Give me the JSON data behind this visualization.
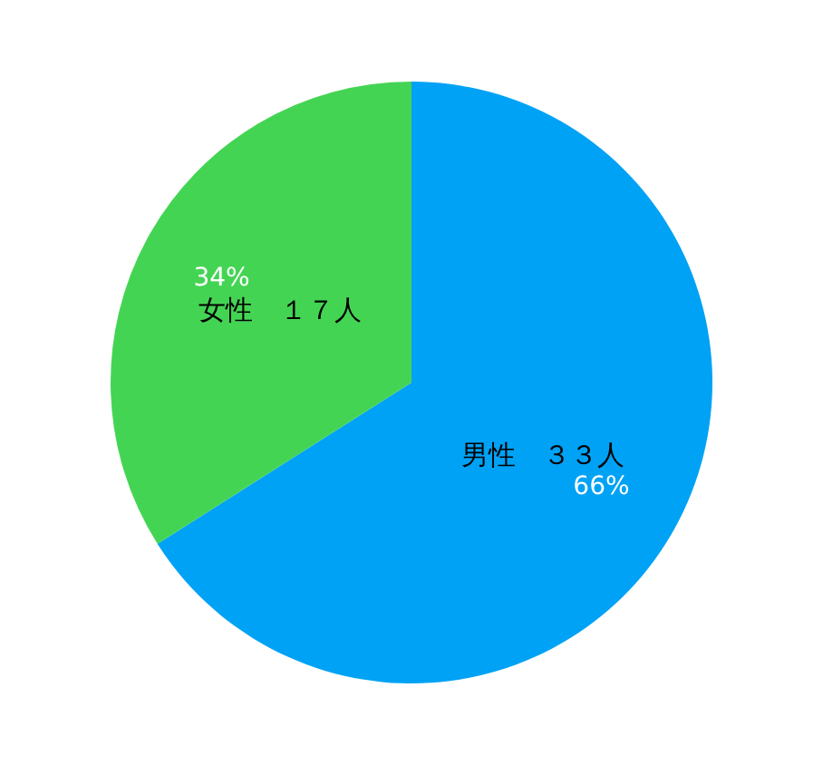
{
  "chart_data": {
    "type": "pie",
    "categories": [
      "男性　３３人",
      "女性　１７人"
    ],
    "values": [
      66,
      34
    ],
    "colors": [
      "#00a2f5",
      "#44d454"
    ],
    "value_labels": [
      "66%",
      "34%"
    ],
    "legend": false
  }
}
